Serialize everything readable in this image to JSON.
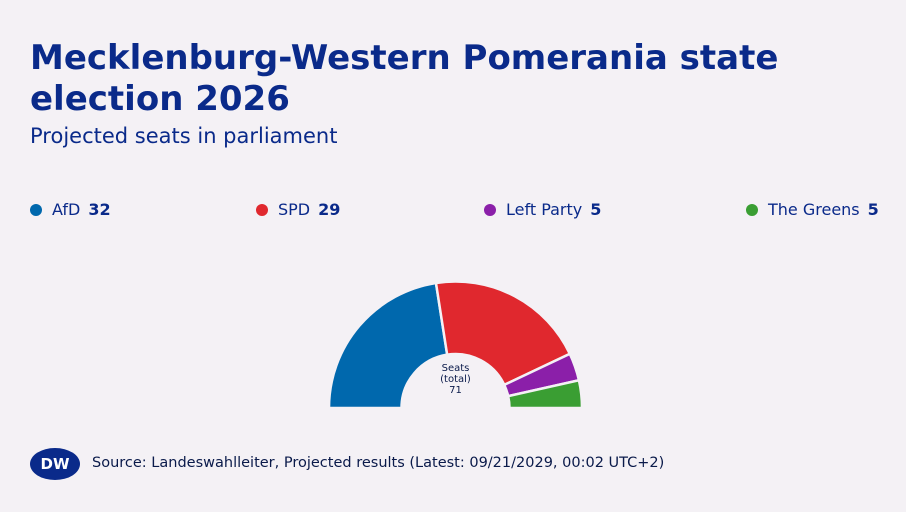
{
  "chart_data": {
    "type": "half-donut",
    "title": "Mecklenburg-Western Pomerania state election 2026",
    "subtitle": "Projected seats in parliament",
    "categories": [
      "AfD",
      "SPD",
      "Left Party",
      "The Greens"
    ],
    "values": [
      32,
      29,
      5,
      5
    ],
    "colors": [
      "#0068ad",
      "#e0282e",
      "#8b1fa9",
      "#3a9e33"
    ],
    "center_label": [
      "Seats",
      "(total)"
    ],
    "total": 71,
    "logo": "DW",
    "source": "Source: Landeswahlleiter, Projected results (Latest: 09/21/2029, 00:02 UTC+2)"
  }
}
